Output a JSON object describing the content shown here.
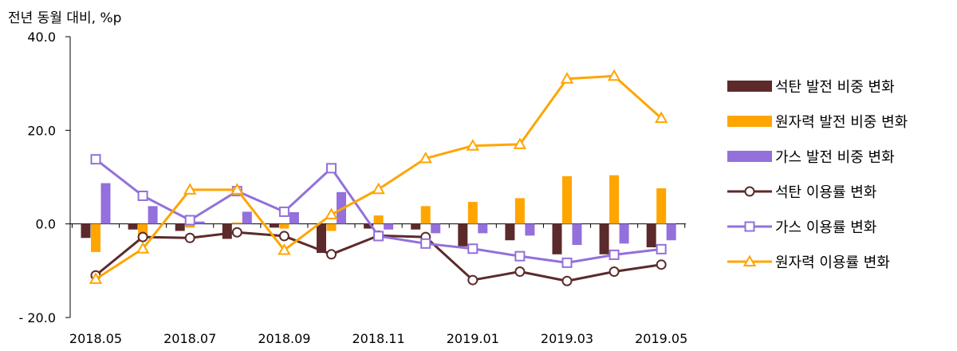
{
  "unit_label": "전년 동월 대비, %p",
  "chart_data": {
    "type": "bar",
    "ylim": [
      -20,
      40
    ],
    "yticks": [
      {
        "value": 40,
        "label": "40.0"
      },
      {
        "value": 20,
        "label": "20.0"
      },
      {
        "value": 0,
        "label": "0.0"
      },
      {
        "value": -20,
        "label": "- 20.0"
      }
    ],
    "categories": [
      "2018.05",
      "2018.06",
      "2018.07",
      "2018.08",
      "2018.09",
      "2018.10",
      "2018.11",
      "2018.12",
      "2019.01",
      "2019.02",
      "2019.03",
      "2019.04",
      "2019.05"
    ],
    "xtick_labels": [
      "2018.05",
      "",
      "2018.07",
      "",
      "2018.09",
      "",
      "2018.11",
      "",
      "2019.01",
      "",
      "2019.03",
      "",
      "2019.05"
    ],
    "grid": false,
    "legend_position": "right",
    "bar_series": [
      {
        "name": "석탄 발전 비중 변화",
        "color": "#5c2a2a",
        "values": [
          -3.0,
          -1.2,
          -1.5,
          -3.2,
          -0.8,
          -6.2,
          -1.0,
          -1.2,
          -4.8,
          -3.5,
          -6.5,
          -6.5,
          -5.0
        ]
      },
      {
        "name": "원자력 발전 비중 변화",
        "color": "#ffa500",
        "values": [
          -6.0,
          -2.5,
          -0.8,
          0.3,
          -1.0,
          -1.5,
          1.8,
          3.8,
          4.7,
          5.5,
          10.2,
          10.4,
          7.6
        ]
      },
      {
        "name": "가스 발전 비중 변화",
        "color": "#9370db",
        "values": [
          8.7,
          3.8,
          0.5,
          2.6,
          2.5,
          6.8,
          -1.2,
          -2.0,
          -2.0,
          -2.5,
          -4.5,
          -4.2,
          -3.5
        ]
      }
    ],
    "line_series": [
      {
        "name": "석탄 이용률 변화",
        "color": "#5c2a2a",
        "marker": "circle",
        "values": [
          -11.0,
          -2.8,
          -3.0,
          -1.8,
          -2.6,
          -6.5,
          -2.5,
          -2.8,
          -12.0,
          -10.2,
          -12.2,
          -10.2,
          -8.7
        ]
      },
      {
        "name": "가스 이용률 변화",
        "color": "#9370db",
        "marker": "square",
        "values": [
          13.8,
          6.0,
          0.8,
          7.0,
          2.6,
          11.9,
          -2.6,
          -4.2,
          -5.3,
          -6.9,
          -8.3,
          -6.6,
          -5.4
        ]
      },
      {
        "name": "원자력 이용률 변화",
        "color": "#ffa500",
        "marker": "triangle",
        "values": [
          -11.8,
          -5.3,
          7.3,
          7.3,
          -5.6,
          2.0,
          7.4,
          14.0,
          16.7,
          17.0,
          31.0,
          31.6,
          22.6
        ]
      }
    ]
  }
}
